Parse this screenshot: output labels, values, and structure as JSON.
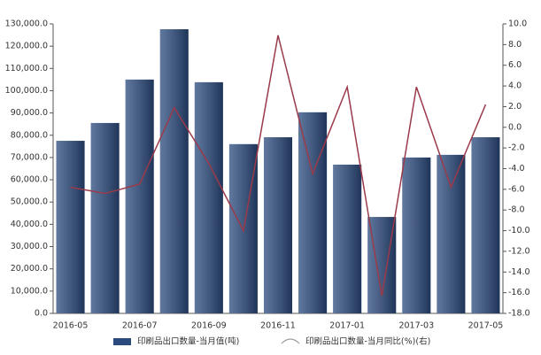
{
  "chart_data": {
    "type": "bar-line",
    "categories": [
      "2016-05",
      null,
      "2016-07",
      null,
      "2016-09",
      null,
      "2016-11",
      null,
      "2017-01",
      null,
      "2017-03",
      null,
      "2017-05"
    ],
    "series": [
      {
        "name": "印刷品出口数量-当月值(吨)",
        "type": "bar",
        "color": "#2b4a7e",
        "values": [
          77500,
          85500,
          105000,
          127600,
          103800,
          76000,
          79100,
          90300,
          66800,
          43300,
          70000,
          71200,
          79100
        ]
      },
      {
        "name": "印刷品出口数量-当月同比(%)(右)",
        "type": "line",
        "axis": "y2",
        "color": "#9b3a4a",
        "values": [
          -5.8,
          -6.4,
          -5.5,
          1.9,
          -3.5,
          -10.0,
          8.9,
          -4.5,
          3.9,
          -16.3,
          3.9,
          -5.8,
          2.2
        ]
      }
    ],
    "ylim": [
      0,
      130000
    ],
    "yticks": [
      {
        "value": 0,
        "label": "0.0"
      },
      {
        "value": 10000,
        "label": "10,000.0"
      },
      {
        "value": 20000,
        "label": "20,000.0"
      },
      {
        "value": 30000,
        "label": "30,000.0"
      },
      {
        "value": 40000,
        "label": "40,000.0"
      },
      {
        "value": 50000,
        "label": "50,000.0"
      },
      {
        "value": 60000,
        "label": "60,000.0"
      },
      {
        "value": 70000,
        "label": "70,000.0"
      },
      {
        "value": 80000,
        "label": "80,000.0"
      },
      {
        "value": 90000,
        "label": "90,000.0"
      },
      {
        "value": 100000,
        "label": "100,000.0"
      },
      {
        "value": 110000,
        "label": "110,000.0"
      },
      {
        "value": 120000,
        "label": "120,000.0"
      },
      {
        "value": 130000,
        "label": "130,000.0"
      }
    ],
    "y2lim": [
      -18,
      10
    ],
    "y2ticks": [
      {
        "value": -18,
        "label": "-18.0"
      },
      {
        "value": -16,
        "label": "-16.0"
      },
      {
        "value": -14,
        "label": "-14.0"
      },
      {
        "value": -12,
        "label": "-12.0"
      },
      {
        "value": -10,
        "label": "-10.0"
      },
      {
        "value": -8,
        "label": "-8.0"
      },
      {
        "value": -6,
        "label": "-6.0"
      },
      {
        "value": -4,
        "label": "-4.0"
      },
      {
        "value": -2,
        "label": "-2.0"
      },
      {
        "value": 0,
        "label": "0.0"
      },
      {
        "value": 2,
        "label": "2.0"
      },
      {
        "value": 4,
        "label": "4.0"
      },
      {
        "value": 6,
        "label": "6.0"
      },
      {
        "value": 8,
        "label": "8.0"
      },
      {
        "value": 10,
        "label": "10.0"
      }
    ],
    "grid": false,
    "legend": "bottom"
  }
}
